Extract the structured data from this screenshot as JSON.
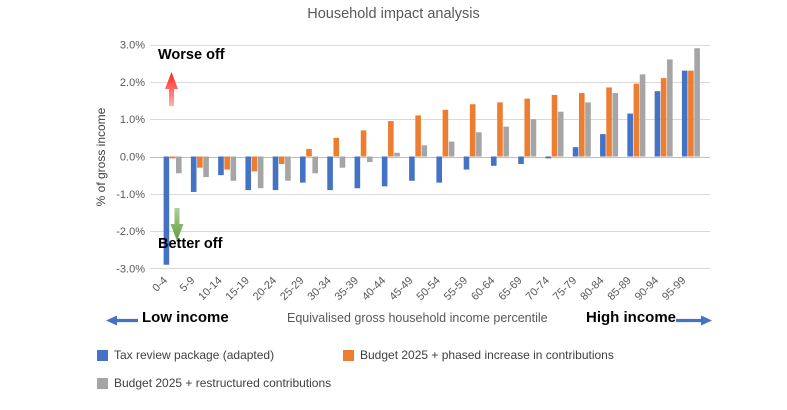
{
  "title": "Household impact analysis",
  "y_axis": {
    "title": "% of gross income"
  },
  "x_axis": {
    "title": "Equivalised gross household income percentile"
  },
  "annotations": {
    "worse_off": "Worse off",
    "better_off": "Better off",
    "low_income": "Low income",
    "high_income": "High income"
  },
  "colors": {
    "series_blue": "#4472C4",
    "series_orange": "#ED7D31",
    "series_gray": "#A5A5A5",
    "red_arrow": "#FF1F1F",
    "green_arrow": "#70AD47",
    "blue_arrow": "#4472C4",
    "gridline": "#D9D9D9",
    "zero_line": "#BFBFBF",
    "axis_text": "#595959"
  },
  "chart_data": {
    "type": "bar",
    "title": "Household impact analysis",
    "xlabel": "Equivalised gross household income percentile",
    "ylabel": "% of gross income",
    "ylim": [
      -3.0,
      3.0
    ],
    "yticks": [
      3,
      2,
      1,
      0,
      -1,
      -2,
      -3
    ],
    "ytick_labels": [
      "3.0%",
      "2.0%",
      "1.0%",
      "0.0%",
      "-1.0%",
      "-2.0%",
      "-3.0%"
    ],
    "grid": true,
    "legend_position": "bottom",
    "categories": [
      "0-4",
      "5-9",
      "10-14",
      "15-19",
      "20-24",
      "25-29",
      "30-34",
      "35-39",
      "40-44",
      "45-49",
      "50-54",
      "55-59",
      "60-64",
      "65-69",
      "70-74",
      "75-79",
      "80-84",
      "85-89",
      "90-94",
      "95-99"
    ],
    "series": [
      {
        "name": "Tax review package (adapted)",
        "color": "#4472C4",
        "values": [
          -2.9,
          -0.95,
          -0.5,
          -0.9,
          -0.9,
          -0.7,
          -0.9,
          -0.85,
          -0.8,
          -0.65,
          -0.7,
          -0.35,
          -0.25,
          -0.2,
          -0.05,
          0.25,
          0.6,
          1.15,
          1.75,
          2.3
        ]
      },
      {
        "name": "Budget 2025 + phased increase in contributions",
        "color": "#ED7D31",
        "values": [
          -0.05,
          -0.3,
          -0.35,
          -0.4,
          -0.2,
          0.2,
          0.5,
          0.7,
          0.95,
          1.1,
          1.25,
          1.4,
          1.45,
          1.55,
          1.65,
          1.7,
          1.85,
          1.95,
          2.1,
          2.3
        ]
      },
      {
        "name": "Budget 2025 + restructured contributions",
        "color": "#A5A5A5",
        "values": [
          -0.45,
          -0.55,
          -0.65,
          -0.85,
          -0.65,
          -0.45,
          -0.3,
          -0.15,
          0.1,
          0.3,
          0.4,
          0.65,
          0.8,
          1.0,
          1.2,
          1.45,
          1.7,
          2.2,
          2.6,
          2.9
        ]
      }
    ]
  }
}
